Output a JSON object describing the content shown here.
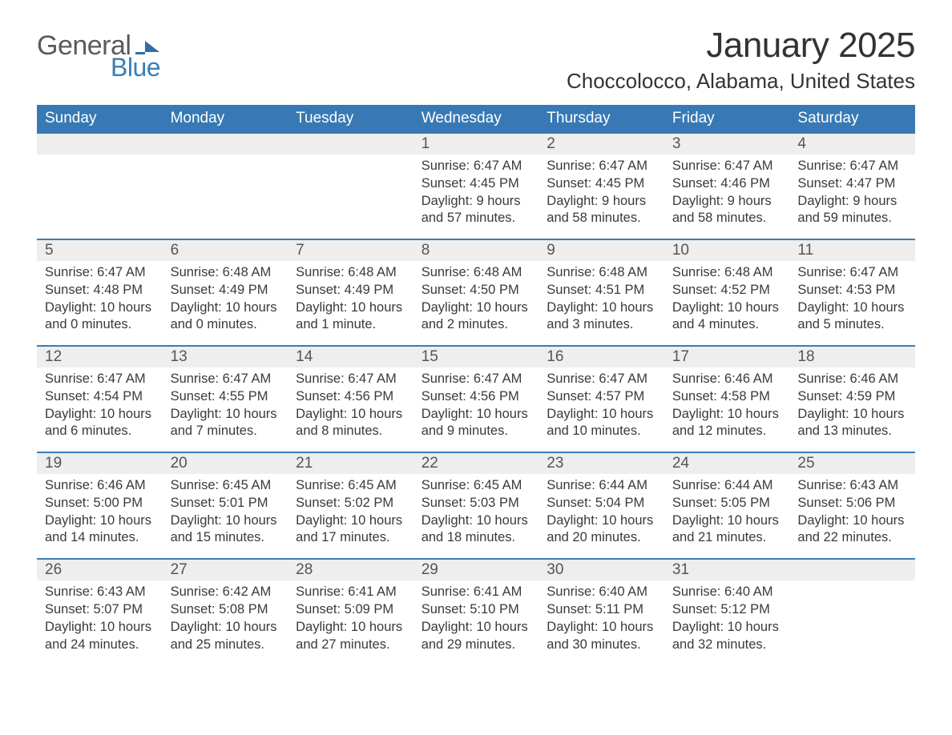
{
  "logo": {
    "word1": "General",
    "word2": "Blue",
    "flag_color": "#2f6ea6"
  },
  "header": {
    "month_title": "January 2025",
    "location": "Choccolocco, Alabama, United States"
  },
  "colors": {
    "header_row": "#3879b5",
    "rule": "#3a7db7",
    "gray_band": "#eeeeee",
    "text": "#3a3a3a",
    "background": "#ffffff"
  },
  "days_of_week": [
    "Sunday",
    "Monday",
    "Tuesday",
    "Wednesday",
    "Thursday",
    "Friday",
    "Saturday"
  ],
  "labels": {
    "sunrise": "Sunrise:",
    "sunset": "Sunset:",
    "daylight": "Daylight:"
  },
  "weeks": [
    [
      null,
      null,
      null,
      {
        "n": "1",
        "sunrise": "6:47 AM",
        "sunset": "4:45 PM",
        "daylight": "9 hours and 57 minutes."
      },
      {
        "n": "2",
        "sunrise": "6:47 AM",
        "sunset": "4:45 PM",
        "daylight": "9 hours and 58 minutes."
      },
      {
        "n": "3",
        "sunrise": "6:47 AM",
        "sunset": "4:46 PM",
        "daylight": "9 hours and 58 minutes."
      },
      {
        "n": "4",
        "sunrise": "6:47 AM",
        "sunset": "4:47 PM",
        "daylight": "9 hours and 59 minutes."
      }
    ],
    [
      {
        "n": "5",
        "sunrise": "6:47 AM",
        "sunset": "4:48 PM",
        "daylight": "10 hours and 0 minutes."
      },
      {
        "n": "6",
        "sunrise": "6:48 AM",
        "sunset": "4:49 PM",
        "daylight": "10 hours and 0 minutes."
      },
      {
        "n": "7",
        "sunrise": "6:48 AM",
        "sunset": "4:49 PM",
        "daylight": "10 hours and 1 minute."
      },
      {
        "n": "8",
        "sunrise": "6:48 AM",
        "sunset": "4:50 PM",
        "daylight": "10 hours and 2 minutes."
      },
      {
        "n": "9",
        "sunrise": "6:48 AM",
        "sunset": "4:51 PM",
        "daylight": "10 hours and 3 minutes."
      },
      {
        "n": "10",
        "sunrise": "6:48 AM",
        "sunset": "4:52 PM",
        "daylight": "10 hours and 4 minutes."
      },
      {
        "n": "11",
        "sunrise": "6:47 AM",
        "sunset": "4:53 PM",
        "daylight": "10 hours and 5 minutes."
      }
    ],
    [
      {
        "n": "12",
        "sunrise": "6:47 AM",
        "sunset": "4:54 PM",
        "daylight": "10 hours and 6 minutes."
      },
      {
        "n": "13",
        "sunrise": "6:47 AM",
        "sunset": "4:55 PM",
        "daylight": "10 hours and 7 minutes."
      },
      {
        "n": "14",
        "sunrise": "6:47 AM",
        "sunset": "4:56 PM",
        "daylight": "10 hours and 8 minutes."
      },
      {
        "n": "15",
        "sunrise": "6:47 AM",
        "sunset": "4:56 PM",
        "daylight": "10 hours and 9 minutes."
      },
      {
        "n": "16",
        "sunrise": "6:47 AM",
        "sunset": "4:57 PM",
        "daylight": "10 hours and 10 minutes."
      },
      {
        "n": "17",
        "sunrise": "6:46 AM",
        "sunset": "4:58 PM",
        "daylight": "10 hours and 12 minutes."
      },
      {
        "n": "18",
        "sunrise": "6:46 AM",
        "sunset": "4:59 PM",
        "daylight": "10 hours and 13 minutes."
      }
    ],
    [
      {
        "n": "19",
        "sunrise": "6:46 AM",
        "sunset": "5:00 PM",
        "daylight": "10 hours and 14 minutes."
      },
      {
        "n": "20",
        "sunrise": "6:45 AM",
        "sunset": "5:01 PM",
        "daylight": "10 hours and 15 minutes."
      },
      {
        "n": "21",
        "sunrise": "6:45 AM",
        "sunset": "5:02 PM",
        "daylight": "10 hours and 17 minutes."
      },
      {
        "n": "22",
        "sunrise": "6:45 AM",
        "sunset": "5:03 PM",
        "daylight": "10 hours and 18 minutes."
      },
      {
        "n": "23",
        "sunrise": "6:44 AM",
        "sunset": "5:04 PM",
        "daylight": "10 hours and 20 minutes."
      },
      {
        "n": "24",
        "sunrise": "6:44 AM",
        "sunset": "5:05 PM",
        "daylight": "10 hours and 21 minutes."
      },
      {
        "n": "25",
        "sunrise": "6:43 AM",
        "sunset": "5:06 PM",
        "daylight": "10 hours and 22 minutes."
      }
    ],
    [
      {
        "n": "26",
        "sunrise": "6:43 AM",
        "sunset": "5:07 PM",
        "daylight": "10 hours and 24 minutes."
      },
      {
        "n": "27",
        "sunrise": "6:42 AM",
        "sunset": "5:08 PM",
        "daylight": "10 hours and 25 minutes."
      },
      {
        "n": "28",
        "sunrise": "6:41 AM",
        "sunset": "5:09 PM",
        "daylight": "10 hours and 27 minutes."
      },
      {
        "n": "29",
        "sunrise": "6:41 AM",
        "sunset": "5:10 PM",
        "daylight": "10 hours and 29 minutes."
      },
      {
        "n": "30",
        "sunrise": "6:40 AM",
        "sunset": "5:11 PM",
        "daylight": "10 hours and 30 minutes."
      },
      {
        "n": "31",
        "sunrise": "6:40 AM",
        "sunset": "5:12 PM",
        "daylight": "10 hours and 32 minutes."
      },
      null
    ]
  ]
}
